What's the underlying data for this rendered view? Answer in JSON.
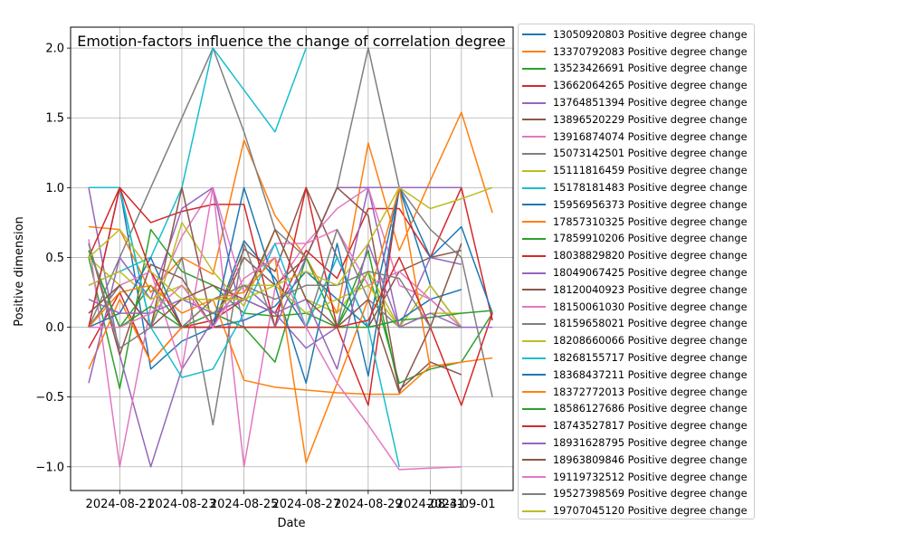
{
  "chart_data": {
    "type": "line",
    "title": "Emotion-factors influence the change of correlation degree",
    "xlabel": "Date",
    "ylabel": "Positive dimension",
    "x_ticks": [
      "2024-08-21",
      "2024-08-23",
      "2024-08-25",
      "2024-08-27",
      "2024-08-29",
      "2024-08-31",
      "2024-09-01"
    ],
    "x": [
      "2024-08-20",
      "2024-08-21",
      "2024-08-22",
      "2024-08-23",
      "2024-08-24",
      "2024-08-25",
      "2024-08-26",
      "2024-08-27",
      "2024-08-28",
      "2024-08-29",
      "2024-08-30",
      "2024-08-31",
      "2024-09-01",
      "2024-09-02"
    ],
    "xlim": [
      "2024-08-19T10:00",
      "2024-09-02T16:00"
    ],
    "ylim": [
      -1.17,
      2.15
    ],
    "y_ticks": [
      -1.0,
      -0.5,
      0.0,
      0.5,
      1.0,
      1.5,
      2.0
    ],
    "y_tick_labels": [
      "−1.0",
      "−0.5",
      "0.0",
      "0.5",
      "1.0",
      "1.5",
      "2.0"
    ],
    "grid": true,
    "legend_position": "outside-right",
    "colors": [
      "#1f77b4",
      "#ff7f0e",
      "#2ca02c",
      "#d62728",
      "#9467bd",
      "#8c564b",
      "#e377c2",
      "#7f7f7f",
      "#bcbd22",
      "#17becf"
    ],
    "series": [
      {
        "name": "13050920803 Positive degree change",
        "values": [
          1.0,
          1.0,
          -0.3,
          -0.1,
          0.0,
          0.62,
          0.35,
          0.0,
          0.5,
          0.0,
          1.0,
          0.3,
          0.0,
          null
        ]
      },
      {
        "name": "13370792083 Positive degree change",
        "values": [
          0.72,
          0.7,
          0.25,
          0.5,
          0.38,
          1.34,
          0.8,
          0.5,
          0.1,
          1.32,
          0.55,
          1.05,
          1.54,
          0.82
        ]
      },
      {
        "name": "13523426691 Positive degree change",
        "values": [
          0.5,
          -0.44,
          0.7,
          0.4,
          0.3,
          0.1,
          0.08,
          0.1,
          0.0,
          0.4,
          -0.4,
          -0.3,
          -0.25,
          0.1
        ]
      },
      {
        "name": "13662064265 Positive degree change",
        "values": [
          -0.15,
          0.25,
          -0.25,
          0.0,
          0.05,
          0.2,
          0.1,
          0.55,
          0.35,
          0.85,
          0.85,
          0.5,
          1.0,
          null
        ]
      },
      {
        "name": "13764851394 Positive degree change",
        "values": [
          1.0,
          -0.2,
          -1.0,
          -0.3,
          0.05,
          0.3,
          0.1,
          -0.15,
          0.0,
          1.0,
          0.0,
          0.5,
          0.45,
          null
        ]
      },
      {
        "name": "13896520229 Positive degree change",
        "values": [
          0.6,
          -0.2,
          0.45,
          0.35,
          0.0,
          0.56,
          0.4,
          1.0,
          0.5,
          0.0,
          0.4,
          0.5,
          0.55,
          null
        ]
      },
      {
        "name": "13916874074 Positive degree change",
        "values": [
          0.63,
          -1.0,
          0.15,
          0.65,
          1.0,
          -1.0,
          0.28,
          0.6,
          0.85,
          1.0,
          0.3,
          0.2,
          0.0,
          null
        ]
      },
      {
        "name": "15073142501 Positive degree change",
        "values": [
          0.0,
          0.5,
          1.0,
          1.5,
          2.0,
          1.4,
          0.7,
          0.5,
          1.0,
          2.0,
          1.0,
          0.7,
          0.5,
          -0.5
        ]
      },
      {
        "name": "15111816459 Positive degree change",
        "values": [
          0.5,
          0.3,
          0.0,
          0.75,
          0.4,
          0.15,
          0.7,
          0.2,
          0.1,
          0.4,
          0.0,
          0.3,
          0.0,
          null
        ]
      },
      {
        "name": "15178181483 Positive degree change",
        "values": [
          0.3,
          0.4,
          0.5,
          1.0,
          2.0,
          1.7,
          1.4,
          2.0,
          null,
          null,
          null,
          null,
          null,
          null
        ]
      },
      {
        "name": "15956956373 Positive degree change",
        "values": [
          0.0,
          1.0,
          0.0,
          0.0,
          0.0,
          0.05,
          0.15,
          0.4,
          0.2,
          0.0,
          0.05,
          0.2,
          0.27,
          null
        ]
      },
      {
        "name": "17857310325 Positive degree change",
        "values": [
          -0.3,
          0.2,
          -0.25,
          0.0,
          0.2,
          -0.38,
          -0.43,
          -0.45,
          -0.47,
          -0.48,
          -0.48,
          -0.28,
          -0.25,
          -0.22
        ]
      },
      {
        "name": "17859910206 Positive degree change",
        "values": [
          0.55,
          0.0,
          0.3,
          0.0,
          0.1,
          0.0,
          -0.25,
          0.5,
          0.0,
          0.55,
          -0.45,
          null,
          null,
          null
        ]
      },
      {
        "name": "18038829820 Positive degree change",
        "values": [
          0.5,
          1.0,
          0.75,
          0.83,
          0.88,
          0.88,
          0.0,
          1.0,
          0.0,
          -0.56,
          1.0,
          1.0,
          1.0,
          0.05
        ]
      },
      {
        "name": "18049067425 Positive degree change",
        "values": [
          -0.4,
          0.5,
          0.2,
          0.85,
          1.0,
          0.0,
          0.0,
          0.5,
          1.0,
          1.0,
          1.0,
          1.0,
          1.0,
          null
        ]
      },
      {
        "name": "18120040923 Positive degree change",
        "values": [
          0.0,
          0.3,
          0.0,
          1.0,
          0.0,
          0.5,
          0.3,
          0.5,
          1.0,
          0.8,
          -0.45,
          -0.25,
          -0.34,
          null
        ]
      },
      {
        "name": "18150061030 Positive degree change",
        "values": [
          0.1,
          0.3,
          0.4,
          -0.3,
          1.0,
          0.25,
          0.6,
          0.6,
          0.7,
          0.3,
          0.4,
          0.2,
          0.0,
          null
        ]
      },
      {
        "name": "18159658021 Positive degree change",
        "values": [
          0.0,
          0.3,
          0.0,
          0.5,
          -0.7,
          0.6,
          0.0,
          0.0,
          0.7,
          0.2,
          0.0,
          0.0,
          0.0,
          null
        ]
      },
      {
        "name": "18208660066 Positive degree change",
        "values": [
          0.3,
          0.4,
          0.2,
          0.3,
          0.1,
          0.3,
          0.3,
          0.1,
          0.2,
          0.3,
          0.0,
          0.1,
          0.1,
          null
        ]
      },
      {
        "name": "18268155717 Positive degree change",
        "values": [
          1.0,
          1.0,
          0.0,
          -0.36,
          -0.3,
          0.1,
          0.6,
          0.0,
          0.5,
          0.0,
          -1.0,
          null,
          null,
          null
        ]
      },
      {
        "name": "18368437211 Positive degree change",
        "values": [
          0.0,
          0.1,
          0.5,
          0.0,
          0.0,
          1.0,
          0.3,
          -0.4,
          0.6,
          -0.35,
          1.0,
          0.5,
          0.72,
          0.1
        ]
      },
      {
        "name": "18372772013 Positive degree change",
        "values": [
          0.0,
          0.25,
          0.3,
          0.1,
          0.2,
          0.25,
          0.5,
          -0.97,
          -0.4,
          0.2,
          1.0,
          -0.3,
          null,
          null
        ]
      },
      {
        "name": "18586127686 Positive degree change",
        "values": [
          0.55,
          0.0,
          0.15,
          0.0,
          0.0,
          0.0,
          0.0,
          0.0,
          0.0,
          0.0,
          0.05,
          0.07,
          0.1,
          0.12
        ]
      },
      {
        "name": "18743527817 Positive degree change",
        "values": [
          0.0,
          1.0,
          0.4,
          0.0,
          0.0,
          0.0,
          0.0,
          0.0,
          0.0,
          0.05,
          0.5,
          0.0,
          -0.56,
          0.1
        ]
      },
      {
        "name": "18931628795 Positive degree change",
        "values": [
          0.2,
          0.1,
          0.1,
          0.2,
          0.1,
          0.2,
          0.1,
          0.2,
          -0.3,
          0.6,
          0.0,
          0.1,
          0.0,
          0.0
        ]
      },
      {
        "name": "18963809846 Positive degree change",
        "values": [
          0.1,
          0.3,
          0.0,
          0.2,
          0.3,
          0.2,
          0.7,
          0.2,
          0.0,
          0.2,
          -0.47,
          0.0,
          0.6,
          null
        ]
      },
      {
        "name": "19119732512 Positive degree change",
        "values": [
          0.0,
          0.0,
          0.1,
          0.3,
          0.0,
          0.35,
          0.5,
          0.0,
          -0.4,
          -0.7,
          -1.02,
          -1.01,
          -1.0,
          null
        ]
      },
      {
        "name": "19527398569 Positive degree change",
        "values": [
          0.6,
          -0.15,
          0.0,
          0.0,
          0.2,
          0.3,
          0.2,
          0.3,
          0.3,
          0.4,
          0.35,
          0.0,
          0.0,
          null
        ]
      },
      {
        "name": "19707045120 Positive degree change",
        "values": [
          0.5,
          0.7,
          0.4,
          0.2,
          0.2,
          0.2,
          0.3,
          0.4,
          0.3,
          0.6,
          1.0,
          0.85,
          0.92,
          1.0
        ]
      }
    ]
  }
}
